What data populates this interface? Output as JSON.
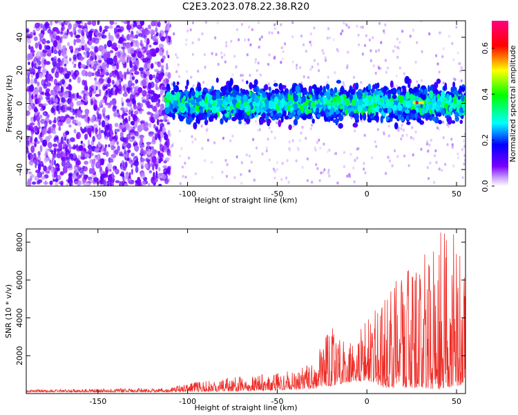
{
  "title": "C2E3.2023.078.22.38.R20",
  "chart_data": [
    {
      "type": "heatmap",
      "xlabel": "Height of straight line (km)",
      "ylabel": "Frequency (Hz)",
      "xlim": [
        -190,
        55
      ],
      "ylim": [
        -50,
        50
      ],
      "x_ticks": [
        -150,
        -100,
        -50,
        0,
        50
      ],
      "y_ticks": [
        -40,
        -20,
        0,
        20,
        40
      ],
      "colorbar": {
        "label": "Normalized spectral amplitude",
        "range": [
          0,
          0.72
        ],
        "ticks": [
          "0.0",
          "0.2",
          "0.4",
          "0.6"
        ],
        "colors": [
          "#ffffff",
          "#7a00ff",
          "#0000ff",
          "#00ffff",
          "#00ff00",
          "#ffff00",
          "#ff0000",
          "#ff0080"
        ]
      },
      "band": {
        "noise_region_x": [
          -190,
          -112
        ],
        "band_center_hz": 0,
        "band_halfwidth_hz": [
          8,
          18
        ],
        "peak_x": 28,
        "peak_amplitude": 0.7
      }
    },
    {
      "type": "line",
      "xlabel": "Height of straight line (km)",
      "ylabel": "SNR (10 * v/v)",
      "xlim": [
        -190,
        55
      ],
      "ylim": [
        0,
        8700
      ],
      "x_ticks": [
        -150,
        -100,
        -50,
        0,
        50
      ],
      "y_ticks": [
        2000,
        4000,
        6000,
        8000
      ],
      "color": "#ee2b25",
      "envelope": {
        "x": [
          -190,
          -110,
          -100,
          -80,
          -60,
          -40,
          -30,
          -20,
          -10,
          0,
          10,
          20,
          30,
          40,
          50,
          55
        ],
        "max": [
          200,
          300,
          550,
          800,
          1000,
          1300,
          1700,
          3500,
          3000,
          4000,
          5000,
          6500,
          7000,
          8700,
          8500,
          6000
        ],
        "min": [
          80,
          80,
          100,
          100,
          150,
          200,
          250,
          400,
          600,
          700,
          300,
          300,
          300,
          200,
          400,
          500
        ]
      }
    }
  ]
}
